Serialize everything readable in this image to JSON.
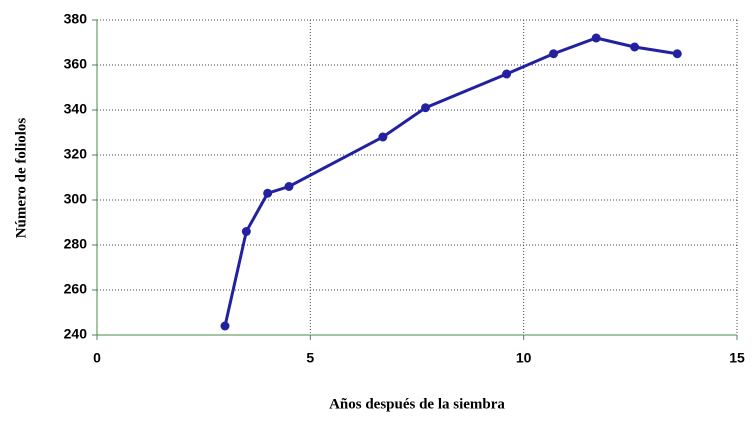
{
  "chart_data": {
    "type": "line",
    "xlabel": "Años después de la siembra",
    "ylabel": "Número de foliolos",
    "x": [
      3.0,
      3.5,
      4.0,
      4.5,
      6.7,
      7.7,
      9.6,
      10.7,
      11.7,
      12.6,
      13.6
    ],
    "series": [
      {
        "name": "Número de foliolos",
        "color": "#2222a0",
        "values": [
          244,
          286,
          303,
          306,
          328,
          341,
          356,
          365,
          372,
          368,
          365
        ]
      }
    ],
    "xlim": [
      0,
      15
    ],
    "xticks": [
      0,
      5,
      10,
      15
    ],
    "ylim": [
      240,
      380
    ],
    "yticks": [
      240,
      260,
      280,
      300,
      320,
      340,
      360,
      380
    ],
    "grid": true
  }
}
